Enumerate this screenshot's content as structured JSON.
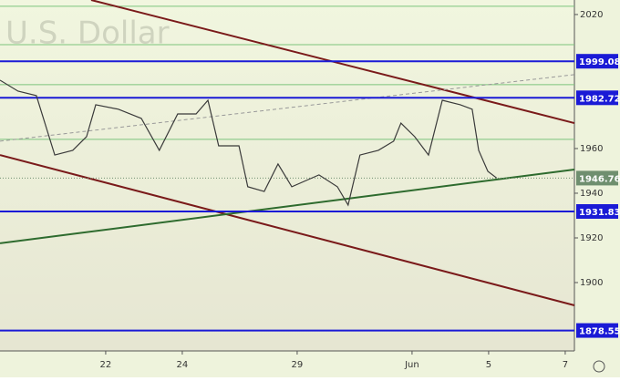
{
  "chart_data": {
    "type": "line",
    "title": "U.S. Dollar",
    "x": [
      -2.76,
      -2.29,
      -1.81,
      -1.33,
      -0.86,
      -0.5,
      -0.26,
      0.33,
      0.93,
      1.4,
      1.88,
      2.36,
      2.67,
      2.95,
      3.48,
      3.71,
      4.14,
      4.5,
      4.86,
      5.57,
      6.05,
      6.33,
      6.64,
      7.12,
      7.52,
      7.71,
      8.07,
      8.43,
      8.79,
      9.26,
      9.57,
      9.74,
      9.98,
      10.21
    ],
    "values": [
      1990.6,
      1985.7,
      1983.7,
      1957.1,
      1959.2,
      1965.3,
      1979.6,
      1977.6,
      1973.5,
      1959.2,
      1975.5,
      1975.5,
      1981.6,
      1961.2,
      1961.2,
      1942.9,
      1940.8,
      1953.1,
      1942.9,
      1948.2,
      1942.9,
      1934.7,
      1957.1,
      1959.2,
      1963.3,
      1971.4,
      1965.3,
      1957.1,
      1981.6,
      1979.6,
      1977.6,
      1959.2,
      1949.8,
      1946.8
    ],
    "color": "#3a3a3a",
    "xlim": [
      -2.76,
      12.24
    ],
    "xticks": [
      {
        "value": 0,
        "label": "22"
      },
      {
        "value": 2,
        "label": "24"
      },
      {
        "value": 5,
        "label": "29"
      },
      {
        "value": 8,
        "label": "Jun"
      },
      {
        "value": 10,
        "label": "5"
      },
      {
        "value": 12,
        "label": "7"
      }
    ],
    "ylim": [
      1869.4,
      2026.5
    ],
    "yticks": [
      1900,
      1920,
      1940,
      1960,
      2020
    ],
    "price_levels": [
      {
        "value": 1999.08,
        "color": "#1a1ad6"
      },
      {
        "value": 1982.72,
        "color": "#1a1ad6"
      },
      {
        "value": 1931.83,
        "color": "#1a1ad6"
      },
      {
        "value": 1878.55,
        "color": "#1a1ad6"
      }
    ],
    "guide_lines": {
      "values": [
        2023.7,
        2006.5,
        1988.6,
        1964.1
      ],
      "color": "#7cc47c"
    },
    "trend_lines": [
      {
        "x": [
          -0.38,
          12.24
        ],
        "y": [
          2026.5,
          1971.4
        ],
        "color": "#7a1a1a",
        "dashed": false
      },
      {
        "x": [
          -2.76,
          12.24
        ],
        "y": [
          1957.1,
          1889.8
        ],
        "color": "#7a1a1a",
        "dashed": false
      },
      {
        "x": [
          -2.76,
          12.24
        ],
        "y": [
          1917.6,
          1950.6
        ],
        "color": "#2e6b2e",
        "dashed": false
      },
      {
        "x": [
          -2.76,
          12.24
        ],
        "y": [
          1963.3,
          1993.1
        ],
        "color": "#999999",
        "dashed": true
      }
    ],
    "last_price": {
      "value": 1946.76,
      "color": "#6f8f6f"
    }
  }
}
